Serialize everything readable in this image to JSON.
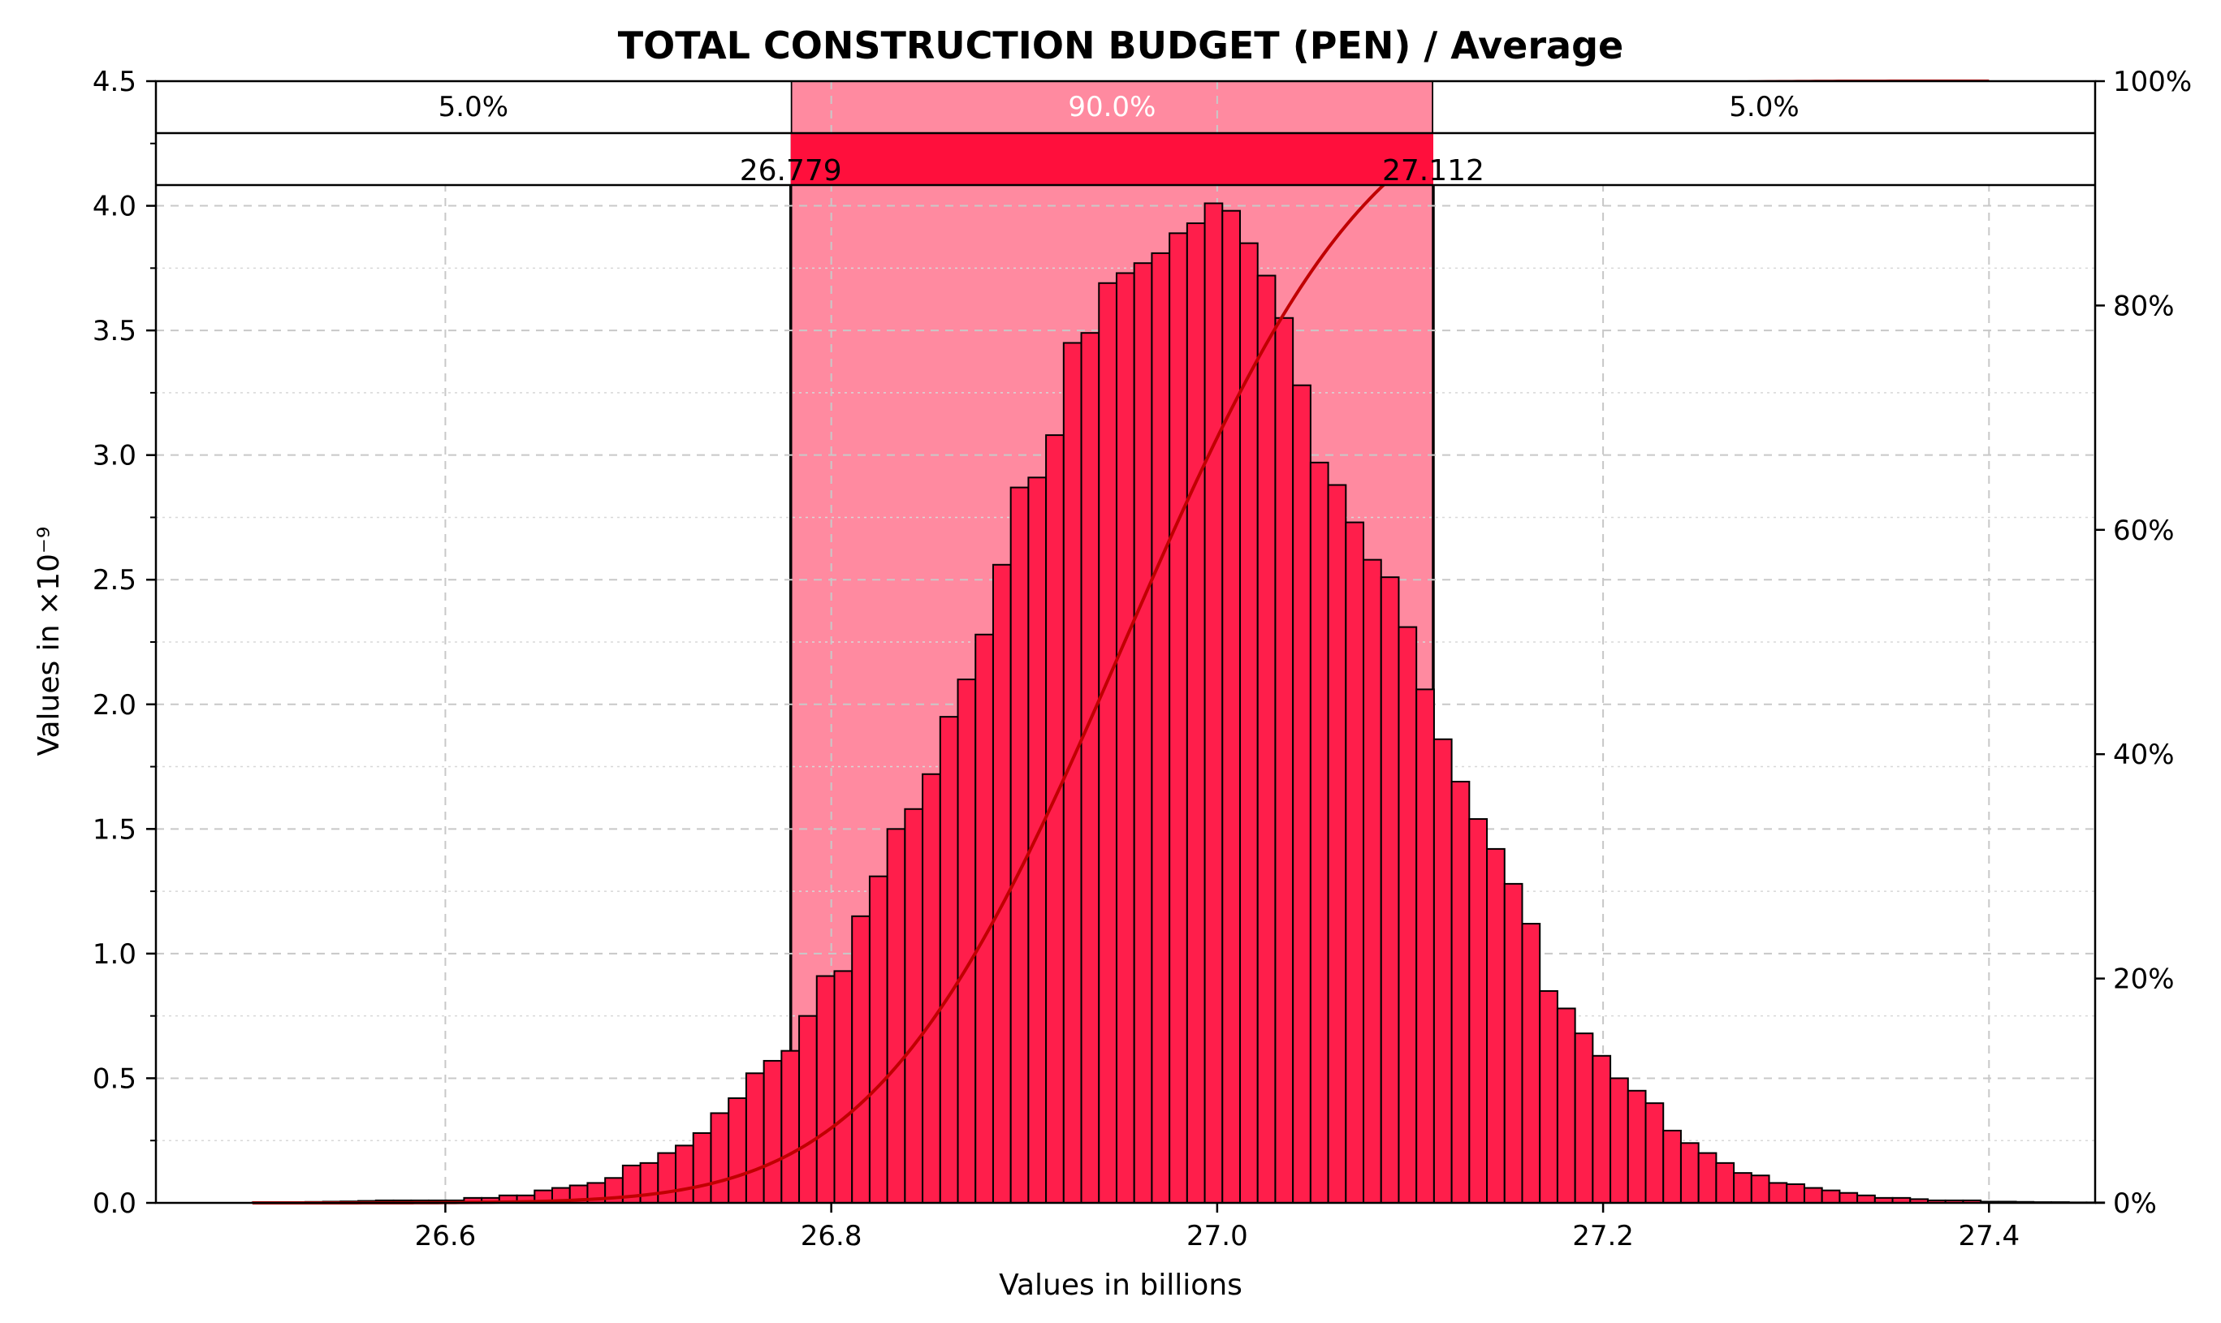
{
  "chart_data": {
    "type": "bar",
    "title": "TOTAL CONSTRUCTION BUDGET (PEN) / Average",
    "xlabel": "Values in billions",
    "ylabel": "Values in ×10⁻⁹",
    "xlim": [
      26.45,
      27.455
    ],
    "ylim": [
      0,
      4.5
    ],
    "x_ticks": [
      26.6,
      26.8,
      27.0,
      27.2,
      27.4
    ],
    "x_tick_labels": [
      "26.6",
      "26.8",
      "27.0",
      "27.2",
      "27.4"
    ],
    "y_ticks": [
      0,
      0.5,
      1.0,
      1.5,
      2.0,
      2.5,
      3.0,
      3.5,
      4.0,
      4.5
    ],
    "y_tick_labels": [
      "0.0",
      "0.5",
      "1.0",
      "1.5",
      "2.0",
      "2.5",
      "3.0",
      "3.5",
      "4.0",
      "4.5"
    ],
    "y2_ticks": [
      0,
      20,
      40,
      60,
      80,
      100
    ],
    "y2_tick_labels": [
      "0%",
      "20%",
      "40%",
      "60%",
      "80%",
      "100%"
    ],
    "grid": true,
    "histogram": {
      "bin_start": 26.5,
      "bin_width": 0.00914,
      "values": [
        0.002,
        0.002,
        0.003,
        0.004,
        0.005,
        0.006,
        0.008,
        0.01,
        0.01,
        0.01,
        0.01,
        0.01,
        0.02,
        0.02,
        0.03,
        0.03,
        0.05,
        0.06,
        0.07,
        0.08,
        0.1,
        0.15,
        0.16,
        0.2,
        0.23,
        0.28,
        0.36,
        0.42,
        0.52,
        0.57,
        0.61,
        0.75,
        0.91,
        0.93,
        1.15,
        1.31,
        1.5,
        1.58,
        1.72,
        1.95,
        2.1,
        2.28,
        2.56,
        2.87,
        2.91,
        3.08,
        3.45,
        3.49,
        3.69,
        3.73,
        3.77,
        3.81,
        3.89,
        3.93,
        4.01,
        3.98,
        3.85,
        3.72,
        3.55,
        3.28,
        2.97,
        2.88,
        2.73,
        2.58,
        2.51,
        2.31,
        2.06,
        1.86,
        1.69,
        1.54,
        1.42,
        1.28,
        1.12,
        0.85,
        0.78,
        0.68,
        0.59,
        0.5,
        0.45,
        0.4,
        0.29,
        0.24,
        0.2,
        0.16,
        0.12,
        0.11,
        0.08,
        0.075,
        0.06,
        0.05,
        0.04,
        0.03,
        0.02,
        0.02,
        0.015,
        0.01,
        0.01,
        0.01,
        0.005,
        0.005,
        0.004,
        0.003,
        0.003,
        0.002,
        0.002
      ]
    },
    "interval": {
      "lower": 26.779,
      "upper": 27.112,
      "lower_label": "26.779",
      "upper_label": "27.112",
      "left_pct_label": "5.0%",
      "center_pct_label": "90.0%",
      "right_pct_label": "5.0%"
    },
    "cdf": {
      "mean": 26.952,
      "std": 0.1013,
      "x_start": 26.5,
      "x_end": 27.4
    },
    "colors": {
      "bar_fill": "#ff1e4b",
      "bar_edge": "#000000",
      "band_fill": "#ff8aa0",
      "bar_band_strip": "#ff0f3c",
      "cdf_line": "#c00000",
      "grid": "#c8c8c8",
      "center_pct_text": "#ffffff"
    }
  }
}
